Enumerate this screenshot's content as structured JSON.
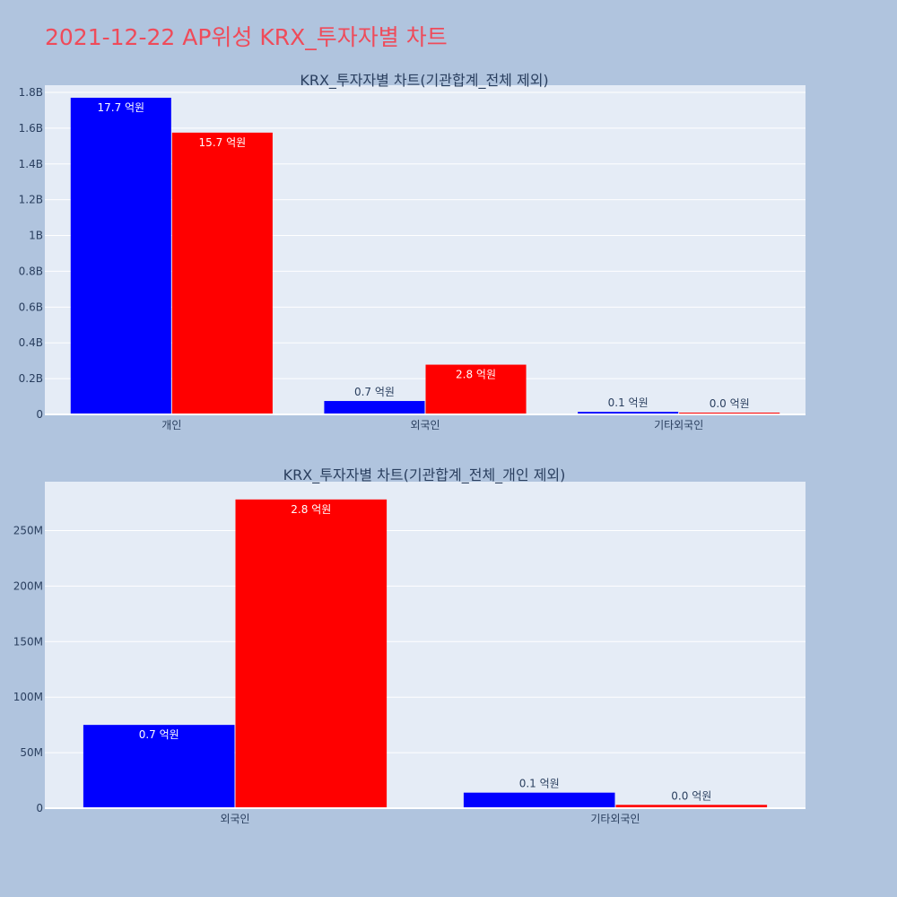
{
  "page": {
    "title": "2021-12-22 AP위성 KRX_투자자별 차트"
  },
  "colors": {
    "background": "#b0c4de",
    "plot_background": "#e5ecf6",
    "title_color": "#ef4b5a",
    "series_buy": "#0000ff",
    "series_sell": "#ff0000",
    "axis_text": "#2a3f5f"
  },
  "chart_data": [
    {
      "type": "bar",
      "title": "KRX_투자자별 차트(기관합계_전체 제외)",
      "categories": [
        "개인",
        "외국인",
        "기타외국인"
      ],
      "series": [
        {
          "color": "#0000ff",
          "values": [
            1770000000,
            75000000,
            14000000
          ],
          "labels": [
            "17.7 억원",
            "0.7 억원",
            "0.1 억원"
          ]
        },
        {
          "color": "#ff0000",
          "values": [
            1575000000,
            278000000,
            3000000
          ],
          "labels": [
            "15.7 억원",
            "2.8 억원",
            "0.0 억원"
          ]
        }
      ],
      "ylim": [
        0,
        1840000000
      ],
      "yticks": [
        0,
        200000000,
        400000000,
        600000000,
        800000000,
        1000000000,
        1200000000,
        1400000000,
        1600000000,
        1800000000
      ],
      "ytick_labels": [
        "0",
        "0.2B",
        "0.4B",
        "0.6B",
        "0.8B",
        "1B",
        "1.2B",
        "1.4B",
        "1.6B",
        "1.8B"
      ],
      "grid": true,
      "legend": "none"
    },
    {
      "type": "bar",
      "title": "KRX_투자자별 차트(기관합계_전체_개인 제외)",
      "categories": [
        "외국인",
        "기타외국인"
      ],
      "series": [
        {
          "color": "#0000ff",
          "values": [
            75000000,
            14000000
          ],
          "labels": [
            "0.7 억원",
            "0.1 억원"
          ]
        },
        {
          "color": "#ff0000",
          "values": [
            278000000,
            3000000
          ],
          "labels": [
            "2.8 억원",
            "0.0 억원"
          ]
        }
      ],
      "ylim": [
        0,
        294000000
      ],
      "yticks": [
        0,
        50000000,
        100000000,
        150000000,
        200000000,
        250000000
      ],
      "ytick_labels": [
        "0",
        "50M",
        "100M",
        "150M",
        "200M",
        "250M"
      ],
      "grid": true,
      "legend": "none"
    }
  ]
}
